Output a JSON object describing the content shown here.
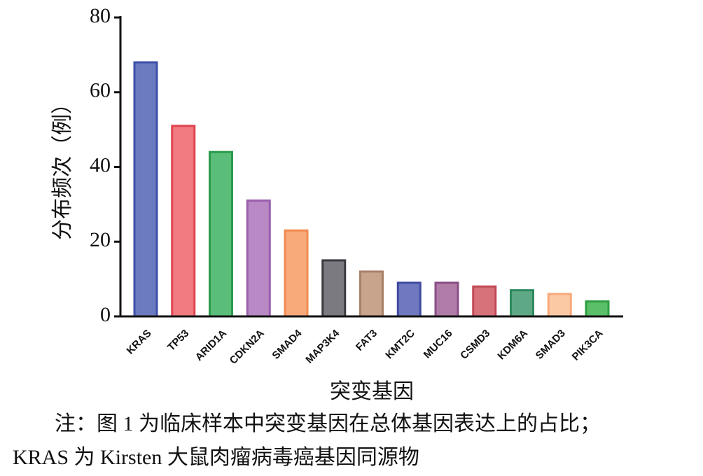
{
  "chart_data": {
    "type": "bar",
    "x_label": "突变基因",
    "y_label": "分布频次（例）",
    "categories": [
      "KRAS",
      "TP53",
      "ARID1A",
      "CDKN2A",
      "SMAD4",
      "MAP3K4",
      "FAT3",
      "KMT2C",
      "MUC16",
      "CSMD3",
      "KDM6A",
      "SMAD3",
      "PIK3CA"
    ],
    "values": [
      68,
      51,
      44,
      31,
      23,
      15,
      12,
      9,
      9,
      8,
      7,
      6,
      4
    ],
    "colors": [
      "#6b7bc0",
      "#f07b80",
      "#5bbd7a",
      "#b889c4",
      "#f8aa7a",
      "#7a7a80",
      "#c8a48c",
      "#7079bf",
      "#b07ca8",
      "#d8727a",
      "#5fa886",
      "#fcc9a5",
      "#5bbf6a"
    ],
    "edge_colors": [
      "#3d4fa8",
      "#e0454e",
      "#2a9a4a",
      "#9a5eab",
      "#f08a50",
      "#3a3a40",
      "#a8806a",
      "#3f4aa0",
      "#8a4e86",
      "#c04a55",
      "#2e8a5e",
      "#f8a878",
      "#2ea040"
    ],
    "ylim": [
      0,
      80
    ],
    "yticks": [
      0,
      20,
      40,
      60,
      80
    ],
    "grid": false,
    "note": [
      "注：图 1 为临床样本中突变基因在总体基因表达上的占比；",
      "KRAS 为 Kirsten 大鼠肉瘤病毒癌基因同源物"
    ]
  }
}
